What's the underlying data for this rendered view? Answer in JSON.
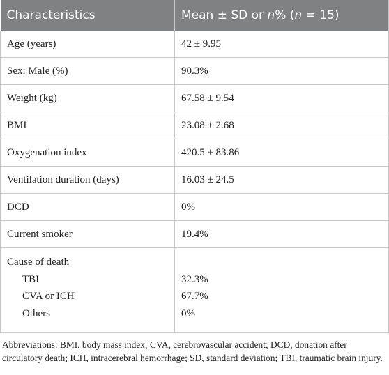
{
  "header": [
    [
      {
        "text": "Characteristics"
      }
    ],
    [
      {
        "text": "Mean ± SD or "
      },
      {
        "text": "n",
        "italic": true
      },
      {
        "text": "% ("
      },
      {
        "text": "n",
        "italic": true
      },
      {
        "text": " = 15)"
      }
    ]
  ],
  "rows": [
    [
      "Age (years)",
      "42 ± 9.95"
    ],
    [
      "Sex: Male (%)",
      "90.3%"
    ],
    [
      "Weight (kg)",
      "67.58 ± 9.54"
    ],
    [
      "BMI",
      "23.08 ± 2.68"
    ],
    [
      "Oxygenation index",
      "420.5 ± 83.86"
    ],
    [
      "Ventilation duration (days)",
      "16.03 ± 24.5"
    ],
    [
      "DCD",
      "0%"
    ],
    [
      "Current smoker",
      "19.4%"
    ]
  ],
  "group": {
    "label": "Cause of death",
    "rows": [
      [
        "TBI",
        "32.3%"
      ],
      [
        "CVA or ICH",
        "67.7%"
      ],
      [
        "Others",
        "0%"
      ]
    ]
  },
  "footnote": "Abbreviations: BMI, body mass index; CVA, cerebrovascular accident; DCD, donation after circulatory death; ICH, intracerebral hemorrhage; SD, standard deviation; TBI, traumatic brain injury."
}
